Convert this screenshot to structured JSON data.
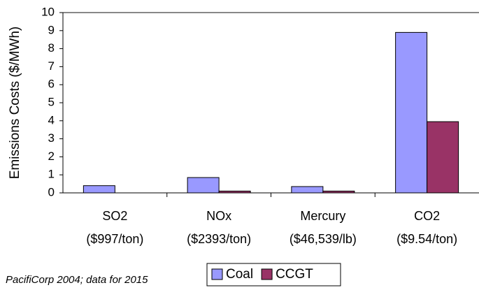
{
  "chart_data": {
    "type": "bar",
    "y_label": "Emissions Costs ($/MWh)",
    "note": "PacifiCorp 2004; data for 2015",
    "categories": [
      [
        "SO2",
        "($997/ton)"
      ],
      [
        "NOx",
        "($2393/ton)"
      ],
      [
        "Mercury",
        "($46,539/lb)"
      ],
      [
        "CO2",
        "($9.54/ton)"
      ]
    ],
    "series": [
      {
        "name": "Coal",
        "color": "#9999ff",
        "values": [
          0.4,
          0.85,
          0.35,
          8.9
        ]
      },
      {
        "name": "CCGT",
        "color": "#993366",
        "values": [
          0,
          0.1,
          0.1,
          3.95
        ]
      }
    ],
    "ylim": [
      0,
      10
    ],
    "yticks": [
      0,
      1,
      2,
      3,
      4,
      5,
      6,
      7,
      8,
      9,
      10
    ],
    "grid": false,
    "legend": "bottom"
  }
}
